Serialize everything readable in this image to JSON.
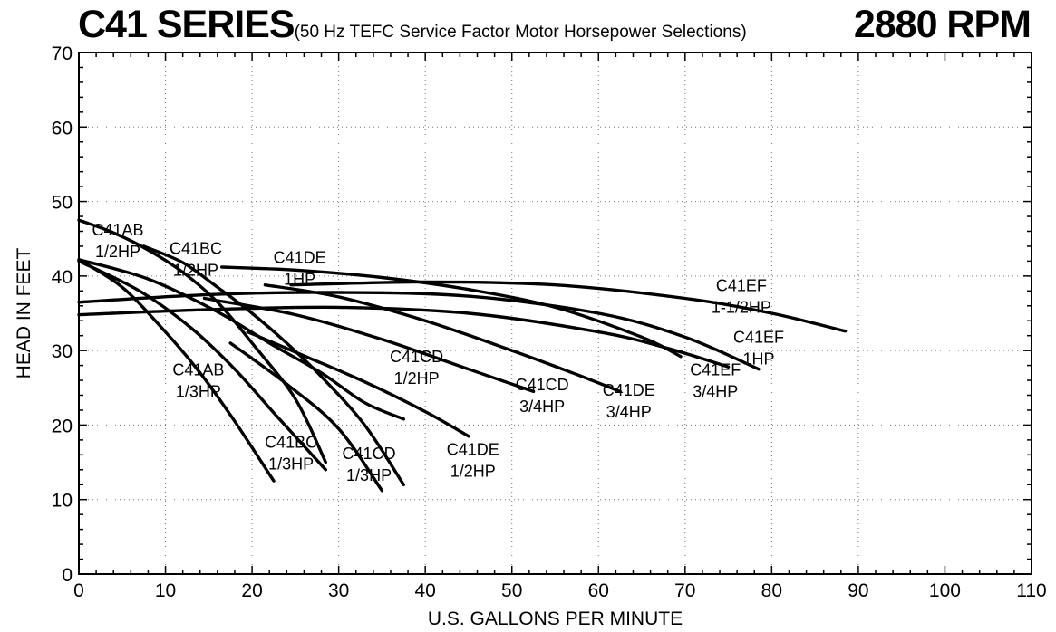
{
  "chart_data": {
    "type": "line",
    "title": "C41 SERIES",
    "subtitle": "(50 Hz TEFC Service Factor Motor Horsepower Selections)",
    "speed": "2880 RPM",
    "xlabel": "U.S. GALLONS PER MINUTE",
    "ylabel": "HEAD IN FEET",
    "xlim": [
      0,
      110
    ],
    "ylim": [
      0,
      70
    ],
    "xticks": [
      0,
      10,
      20,
      30,
      40,
      50,
      60,
      70,
      80,
      90,
      100,
      110
    ],
    "yticks": [
      0,
      10,
      20,
      30,
      40,
      50,
      60,
      70
    ],
    "grid": true,
    "series": [
      {
        "name": "C41AB 1/2HP",
        "points": [
          [
            0,
            47.5
          ],
          [
            4,
            45.8
          ],
          [
            8,
            43.5
          ],
          [
            12,
            40.5
          ],
          [
            16,
            36.5
          ],
          [
            20,
            31.0
          ],
          [
            25,
            23.5
          ],
          [
            28.5,
            15.0
          ]
        ],
        "label": {
          "line1": "C41AB",
          "line2": "1/2HP",
          "x": 4.5,
          "y": 44
        }
      },
      {
        "name": "C41BC 1/2HP",
        "points": [
          [
            7.5,
            44.0
          ],
          [
            12,
            41.8
          ],
          [
            16,
            38.5
          ],
          [
            20,
            35.0
          ],
          [
            24,
            31.0
          ],
          [
            28,
            26.5
          ],
          [
            33,
            20.0
          ],
          [
            37.5,
            12.0
          ]
        ],
        "label": {
          "line1": "C41BC",
          "line2": "1/2HP",
          "x": 13.5,
          "y": 41.5
        }
      },
      {
        "name": "C41DE 1HP",
        "points": [
          [
            16.5,
            41.2
          ],
          [
            25,
            40.8
          ],
          [
            35,
            39.8
          ],
          [
            45,
            38.2
          ],
          [
            55,
            35.8
          ],
          [
            65,
            31.8
          ],
          [
            69.5,
            29.2
          ]
        ],
        "label": {
          "line1": "C41DE",
          "line2": "1HP",
          "x": 25.5,
          "y": 40.3
        }
      },
      {
        "name": "C41EF 1-1/2HP",
        "points": [
          [
            24.5,
            38.8
          ],
          [
            40,
            39.2
          ],
          [
            55,
            38.8
          ],
          [
            70,
            37.0
          ],
          [
            80,
            35.0
          ],
          [
            88.5,
            32.6
          ]
        ],
        "label": {
          "line1": "C41EF",
          "line2": "1-1/2HP",
          "x": 76.5,
          "y": 36.5
        }
      },
      {
        "name": "C41EF 1HP",
        "points": [
          [
            0,
            36.5
          ],
          [
            15,
            37.5
          ],
          [
            30,
            37.8
          ],
          [
            45,
            37.3
          ],
          [
            60,
            35.0
          ],
          [
            70,
            31.8
          ],
          [
            78.5,
            27.5
          ]
        ],
        "label": {
          "line1": "C41EF",
          "line2": "1HP",
          "x": 78.5,
          "y": 29.6
        }
      },
      {
        "name": "C41EF 3/4HP",
        "points": [
          [
            0,
            34.8
          ],
          [
            15,
            35.5
          ],
          [
            30,
            35.8
          ],
          [
            45,
            35.0
          ],
          [
            60,
            32.5
          ],
          [
            68,
            30.3
          ],
          [
            75,
            27.8
          ]
        ],
        "label": {
          "line1": "C41EF",
          "line2": "3/4HP",
          "x": 73.5,
          "y": 25.2
        }
      },
      {
        "name": "C41DE 3/4HP",
        "points": [
          [
            21.5,
            38.8
          ],
          [
            30,
            37.2
          ],
          [
            40,
            34.0
          ],
          [
            50,
            30.0
          ],
          [
            57,
            27.0
          ],
          [
            62.5,
            24.5
          ]
        ],
        "label": {
          "line1": "C41DE",
          "line2": "3/4HP",
          "x": 63.5,
          "y": 22.5
        }
      },
      {
        "name": "C41CD 3/4HP",
        "points": [
          [
            14.5,
            37.0
          ],
          [
            25,
            34.8
          ],
          [
            35,
            31.5
          ],
          [
            45,
            27.5
          ],
          [
            52.5,
            24.5
          ]
        ],
        "label": {
          "line1": "C41CD",
          "line2": "3/4HP",
          "x": 53.5,
          "y": 23.2
        }
      },
      {
        "name": "C41CD 1/2HP",
        "points": [
          [
            0,
            42.2
          ],
          [
            8,
            39.6
          ],
          [
            16,
            35.2
          ],
          [
            22,
            31.0
          ],
          [
            28,
            27.0
          ],
          [
            33,
            23.0
          ],
          [
            37.5,
            20.8
          ]
        ],
        "label": {
          "line1": "C41CD",
          "line2": "1/2HP",
          "x": 39,
          "y": 27.0
        }
      },
      {
        "name": "C41AB 1/3HP",
        "points": [
          [
            0,
            42.2
          ],
          [
            5,
            38.5
          ],
          [
            10,
            32.5
          ],
          [
            14,
            27.0
          ],
          [
            18,
            20.5
          ],
          [
            22.5,
            12.5
          ]
        ],
        "label": {
          "line1": "C41AB",
          "line2": "1/3HP",
          "x": 13.8,
          "y": 25.2
        }
      },
      {
        "name": "C41BC 1/3HP",
        "points": [
          [
            0,
            42.0
          ],
          [
            7,
            38.0
          ],
          [
            13,
            33.0
          ],
          [
            18,
            27.5
          ],
          [
            23,
            21.0
          ],
          [
            28.5,
            14.0
          ]
        ],
        "label": {
          "line1": "C41BC",
          "line2": "1/3HP",
          "x": 24.5,
          "y": 15.5
        }
      },
      {
        "name": "C41CD 1/3HP",
        "points": [
          [
            17.5,
            31.0
          ],
          [
            24,
            25.5
          ],
          [
            30,
            19.5
          ],
          [
            35,
            11.2
          ]
        ],
        "label": {
          "line1": "C41CD",
          "line2": "1/3HP",
          "x": 33.5,
          "y": 14.0
        }
      },
      {
        "name": "C41DE 1/2HP",
        "points": [
          [
            19.5,
            32.5
          ],
          [
            26,
            29.3
          ],
          [
            33,
            25.8
          ],
          [
            40,
            21.8
          ],
          [
            45,
            18.5
          ]
        ],
        "label": {
          "line1": "C41DE",
          "line2": "1/2HP",
          "x": 45.5,
          "y": 14.5
        }
      }
    ]
  }
}
